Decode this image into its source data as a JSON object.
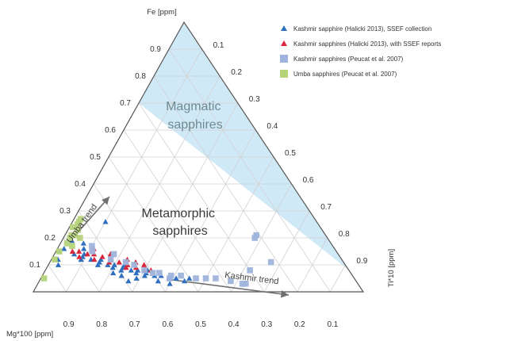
{
  "chart_data": {
    "type": "ternary",
    "axes": {
      "top": {
        "label": "Fe [ppm]",
        "ticks": [
          "0.9",
          "0.8",
          "0.7",
          "0.6",
          "0.5",
          "0.4",
          "0.3",
          "0.2",
          "0.1"
        ]
      },
      "right": {
        "label": "Ti*10 [ppm]",
        "ticks": [
          "0.1",
          "0.2",
          "0.3",
          "0.4",
          "0.5",
          "0.6",
          "0.7",
          "0.8",
          "0.9"
        ]
      },
      "left": {
        "label": "Mg*100 [ppm]",
        "ticks": [
          "0.9",
          "0.8",
          "0.7",
          "0.6",
          "0.5",
          "0.4",
          "0.3",
          "0.2",
          "0.1"
        ]
      }
    },
    "grid": true,
    "regions": [
      {
        "name": "Magmatic sapphires",
        "label_lines": [
          "Magmatic",
          "sapphires"
        ],
        "color": "#cfe9f6"
      },
      {
        "name": "Metamorphic sapphires",
        "label_lines": [
          "Metamorphic",
          "sapphires"
        ],
        "color": "#ffffff"
      }
    ],
    "trends": [
      {
        "label": "Umba trend"
      },
      {
        "label": "Kashmir trend"
      }
    ],
    "legend": {
      "placement": "top-right",
      "entries": [
        {
          "label": "Kashmir sapphire (Halicki 2013), SSEF collection",
          "marker": "triangle",
          "color": "#2f6fbf"
        },
        {
          "label": "Kashmir sapphires (Halicki 2013), with SSEF reports",
          "marker": "triangle",
          "color": "#d8263a"
        },
        {
          "label": "Kashmir sapphires (Peucat et al. 2007)",
          "marker": "square",
          "color": "#9fb4dc"
        },
        {
          "label": "Umba sapphires (Peucat et al. 2007)",
          "marker": "square",
          "color": "#b6d37a"
        }
      ]
    },
    "series": [
      {
        "name": "Kashmir sapphire (Halicki 2013), SSEF collection",
        "points": [
          {
            "mg": 0.84,
            "fe": 0.15,
            "ti": 0.01
          },
          {
            "mg": 0.82,
            "fe": 0.16,
            "ti": 0.02
          },
          {
            "mg": 0.86,
            "fe": 0.12,
            "ti": 0.02
          },
          {
            "mg": 0.8,
            "fe": 0.14,
            "ti": 0.06
          },
          {
            "mg": 0.78,
            "fe": 0.13,
            "ti": 0.09
          },
          {
            "mg": 0.76,
            "fe": 0.12,
            "ti": 0.12
          },
          {
            "mg": 0.74,
            "fe": 0.11,
            "ti": 0.15
          },
          {
            "mg": 0.72,
            "fe": 0.1,
            "ti": 0.18
          },
          {
            "mg": 0.7,
            "fe": 0.1,
            "ti": 0.2
          },
          {
            "mg": 0.68,
            "fe": 0.09,
            "ti": 0.23
          },
          {
            "mg": 0.66,
            "fe": 0.08,
            "ti": 0.26
          },
          {
            "mg": 0.64,
            "fe": 0.08,
            "ti": 0.28
          },
          {
            "mg": 0.62,
            "fe": 0.07,
            "ti": 0.31
          },
          {
            "mg": 0.6,
            "fe": 0.06,
            "ti": 0.34
          },
          {
            "mg": 0.58,
            "fe": 0.06,
            "ti": 0.36
          },
          {
            "mg": 0.56,
            "fe": 0.05,
            "ti": 0.39
          },
          {
            "mg": 0.54,
            "fe": 0.05,
            "ti": 0.41
          },
          {
            "mg": 0.52,
            "fe": 0.04,
            "ti": 0.44
          },
          {
            "mg": 0.79,
            "fe": 0.12,
            "ti": 0.09
          },
          {
            "mg": 0.75,
            "fe": 0.1,
            "ti": 0.15
          },
          {
            "mg": 0.71,
            "fe": 0.09,
            "ti": 0.2
          },
          {
            "mg": 0.69,
            "fe": 0.08,
            "ti": 0.23
          },
          {
            "mg": 0.65,
            "fe": 0.07,
            "ti": 0.28
          },
          {
            "mg": 0.63,
            "fe": 0.06,
            "ti": 0.31
          },
          {
            "mg": 0.77,
            "fe": 0.14,
            "ti": 0.09
          },
          {
            "mg": 0.73,
            "fe": 0.12,
            "ti": 0.15
          },
          {
            "mg": 0.67,
            "fe": 0.1,
            "ti": 0.23
          },
          {
            "mg": 0.61,
            "fe": 0.08,
            "ti": 0.31
          },
          {
            "mg": 0.72,
            "fe": 0.07,
            "ti": 0.21
          },
          {
            "mg": 0.7,
            "fe": 0.06,
            "ti": 0.24
          },
          {
            "mg": 0.66,
            "fe": 0.05,
            "ti": 0.29
          },
          {
            "mg": 0.69,
            "fe": 0.04,
            "ti": 0.27
          },
          {
            "mg": 0.87,
            "fe": 0.1,
            "ti": 0.03
          },
          {
            "mg": 0.6,
            "fe": 0.04,
            "ti": 0.36
          },
          {
            "mg": 0.57,
            "fe": 0.03,
            "ti": 0.4
          },
          {
            "mg": 0.5,
            "fe": 0.05,
            "ti": 0.45
          },
          {
            "mg": 0.78,
            "fe": 0.19,
            "ti": 0.03
          },
          {
            "mg": 0.75,
            "fe": 0.18,
            "ti": 0.07
          },
          {
            "mg": 0.76,
            "fe": 0.16,
            "ti": 0.08
          },
          {
            "mg": 0.64,
            "fe": 0.26,
            "ti": 0.1
          }
        ]
      },
      {
        "name": "Kashmir sapphires (Halicki 2013), with SSEF reports",
        "points": [
          {
            "mg": 0.8,
            "fe": 0.15,
            "ti": 0.05
          },
          {
            "mg": 0.78,
            "fe": 0.15,
            "ti": 0.07
          },
          {
            "mg": 0.76,
            "fe": 0.14,
            "ti": 0.1
          },
          {
            "mg": 0.74,
            "fe": 0.14,
            "ti": 0.12
          },
          {
            "mg": 0.72,
            "fe": 0.13,
            "ti": 0.15
          },
          {
            "mg": 0.7,
            "fe": 0.12,
            "ti": 0.18
          },
          {
            "mg": 0.68,
            "fe": 0.11,
            "ti": 0.21
          },
          {
            "mg": 0.66,
            "fe": 0.1,
            "ti": 0.24
          },
          {
            "mg": 0.64,
            "fe": 0.09,
            "ti": 0.27
          },
          {
            "mg": 0.62,
            "fe": 0.08,
            "ti": 0.3
          },
          {
            "mg": 0.6,
            "fe": 0.08,
            "ti": 0.32
          },
          {
            "mg": 0.79,
            "fe": 0.13,
            "ti": 0.08
          },
          {
            "mg": 0.75,
            "fe": 0.12,
            "ti": 0.13
          },
          {
            "mg": 0.71,
            "fe": 0.11,
            "ti": 0.18
          },
          {
            "mg": 0.67,
            "fe": 0.09,
            "ti": 0.24
          },
          {
            "mg": 0.73,
            "fe": 0.16,
            "ti": 0.11
          },
          {
            "mg": 0.69,
            "fe": 0.14,
            "ti": 0.17
          },
          {
            "mg": 0.65,
            "fe": 0.12,
            "ti": 0.23
          },
          {
            "mg": 0.63,
            "fe": 0.11,
            "ti": 0.26
          },
          {
            "mg": 0.61,
            "fe": 0.1,
            "ti": 0.29
          }
        ]
      },
      {
        "name": "Kashmir sapphires (Peucat et al. 2007)",
        "points": [
          {
            "mg": 0.7,
            "fe": 0.12,
            "ti": 0.18
          },
          {
            "mg": 0.66,
            "fe": 0.11,
            "ti": 0.23
          },
          {
            "mg": 0.62,
            "fe": 0.08,
            "ti": 0.3
          },
          {
            "mg": 0.58,
            "fe": 0.07,
            "ti": 0.35
          },
          {
            "mg": 0.55,
            "fe": 0.06,
            "ti": 0.39
          },
          {
            "mg": 0.52,
            "fe": 0.06,
            "ti": 0.42
          },
          {
            "mg": 0.48,
            "fe": 0.05,
            "ti": 0.47
          },
          {
            "mg": 0.45,
            "fe": 0.05,
            "ti": 0.5
          },
          {
            "mg": 0.42,
            "fe": 0.05,
            "ti": 0.53
          },
          {
            "mg": 0.38,
            "fe": 0.04,
            "ti": 0.58
          },
          {
            "mg": 0.35,
            "fe": 0.03,
            "ti": 0.62
          },
          {
            "mg": 0.34,
            "fe": 0.03,
            "ti": 0.63
          },
          {
            "mg": 0.3,
            "fe": 0.08,
            "ti": 0.62
          },
          {
            "mg": 0.22,
            "fe": 0.2,
            "ti": 0.58
          },
          {
            "mg": 0.21,
            "fe": 0.21,
            "ti": 0.58
          },
          {
            "mg": 0.22,
            "fe": 0.11,
            "ti": 0.67
          },
          {
            "mg": 0.64,
            "fe": 0.1,
            "ti": 0.26
          },
          {
            "mg": 0.6,
            "fe": 0.07,
            "ti": 0.33
          },
          {
            "mg": 0.68,
            "fe": 0.14,
            "ti": 0.18
          },
          {
            "mg": 0.73,
            "fe": 0.17,
            "ti": 0.1
          },
          {
            "mg": 0.74,
            "fe": 0.15,
            "ti": 0.11
          },
          {
            "mg": 0.56,
            "fe": 0.05,
            "ti": 0.39
          }
        ]
      },
      {
        "name": "Umba sapphires (Peucat et al. 2007)",
        "points": [
          {
            "mg": 0.94,
            "fe": 0.05,
            "ti": 0.01
          },
          {
            "mg": 0.87,
            "fe": 0.12,
            "ti": 0.01
          },
          {
            "mg": 0.84,
            "fe": 0.15,
            "ti": 0.01
          },
          {
            "mg": 0.8,
            "fe": 0.18,
            "ti": 0.02
          },
          {
            "mg": 0.78,
            "fe": 0.2,
            "ti": 0.02
          },
          {
            "mg": 0.77,
            "fe": 0.21,
            "ti": 0.02
          },
          {
            "mg": 0.75,
            "fe": 0.24,
            "ti": 0.01
          },
          {
            "mg": 0.73,
            "fe": 0.25,
            "ti": 0.02
          },
          {
            "mg": 0.74,
            "fe": 0.23,
            "ti": 0.03
          },
          {
            "mg": 0.76,
            "fe": 0.21,
            "ti": 0.03
          },
          {
            "mg": 0.72,
            "fe": 0.26,
            "ti": 0.02
          },
          {
            "mg": 0.71,
            "fe": 0.27,
            "ti": 0.02
          },
          {
            "mg": 0.79,
            "fe": 0.17,
            "ti": 0.04
          },
          {
            "mg": 0.75,
            "fe": 0.2,
            "ti": 0.05
          }
        ]
      }
    ]
  }
}
